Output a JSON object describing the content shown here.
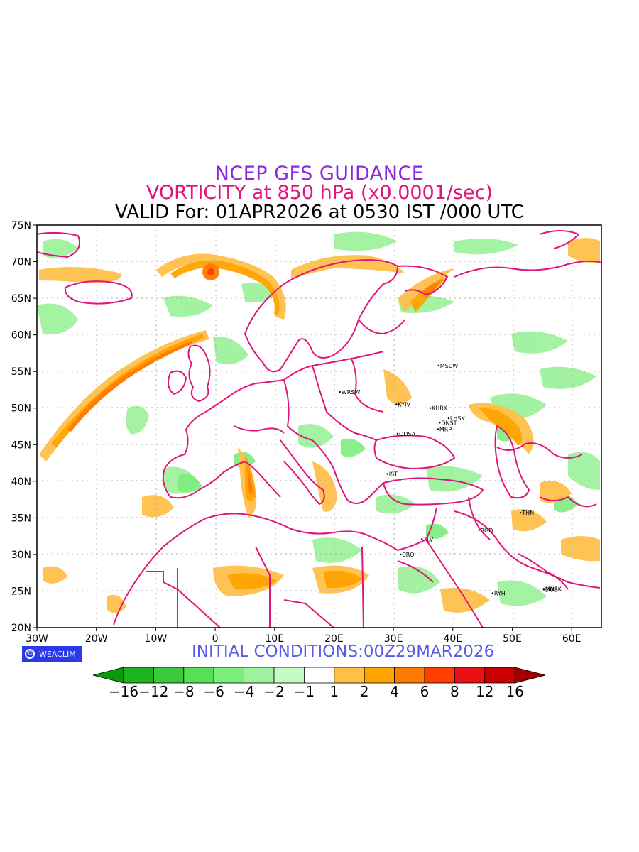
{
  "header": {
    "title": "NCEP GFS GUIDANCE",
    "subtitle": "VORTICITY at 850 hPa (x0.0001/sec)",
    "valid": "VALID For: 01APR2026 at 0530 IST /000 UTC"
  },
  "footer": {
    "logo_text": "WEACLIM",
    "initial_conditions": "INITIAL CONDITIONS:00Z29MAR2026"
  },
  "axes": {
    "lat_labels": [
      "75N",
      "70N",
      "65N",
      "60N",
      "55N",
      "50N",
      "45N",
      "40N",
      "35N",
      "30N",
      "25N",
      "20N"
    ],
    "lon_labels": [
      "30W",
      "20W",
      "10W",
      "0",
      "10E",
      "20E",
      "30E",
      "40E",
      "50E",
      "60E"
    ],
    "lon_range": [
      -30,
      65
    ],
    "lat_range": [
      20,
      75
    ]
  },
  "cities": [
    {
      "code": "MSCW",
      "lon": 37.6,
      "lat": 55.8
    },
    {
      "code": "WRSW",
      "lon": 21.0,
      "lat": 52.2
    },
    {
      "code": "KYIV",
      "lon": 30.5,
      "lat": 50.5
    },
    {
      "code": "KHRK",
      "lon": 36.2,
      "lat": 50.0
    },
    {
      "code": "LHSK",
      "lon": 39.3,
      "lat": 48.6
    },
    {
      "code": "DNST",
      "lon": 37.8,
      "lat": 48.0
    },
    {
      "code": "MRP",
      "lon": 37.5,
      "lat": 47.1
    },
    {
      "code": "ODSA",
      "lon": 30.7,
      "lat": 46.5
    },
    {
      "code": "IST",
      "lon": 29.0,
      "lat": 41.0
    },
    {
      "code": "THN",
      "lon": 51.4,
      "lat": 35.7
    },
    {
      "code": "BGD",
      "lon": 44.4,
      "lat": 33.3
    },
    {
      "code": "TLV",
      "lon": 34.8,
      "lat": 32.1
    },
    {
      "code": "CRO",
      "lon": 31.2,
      "lat": 30.0
    },
    {
      "code": "MNSK",
      "lon": 55.3,
      "lat": 25.3
    },
    {
      "code": "DUB",
      "lon": 55.3,
      "lat": 25.2
    },
    {
      "code": "RYH",
      "lon": 46.7,
      "lat": 24.7
    }
  ],
  "colorbar": {
    "labels": [
      "−16",
      "−12",
      "−8",
      "−6",
      "−4",
      "−2",
      "−1",
      "1",
      "2",
      "4",
      "6",
      "8",
      "12",
      "16"
    ],
    "colors": [
      "#0a9a0a",
      "#1fb21f",
      "#3cc83c",
      "#56e056",
      "#7ded7d",
      "#9ef29e",
      "#c6fac6",
      "#ffffff",
      "#ffc04a",
      "#ffa300",
      "#ff7a00",
      "#ff3f00",
      "#e81010",
      "#c80000",
      "#a00000"
    ]
  },
  "map_colors": {
    "boundary": "#e0157a",
    "positive_light": "#ffc04a",
    "positive_mid": "#ffa300",
    "positive_strong": "#ff7a00",
    "negative_light": "#9ef29e",
    "negative_mid": "#7ded7d"
  }
}
